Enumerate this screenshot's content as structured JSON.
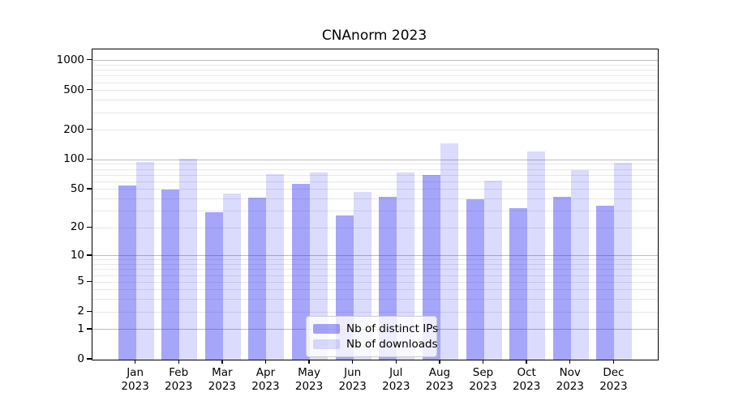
{
  "title": "CNAnorm 2023",
  "chart_data": {
    "type": "bar",
    "title": "CNAnorm 2023",
    "categories": [
      "Jan",
      "Feb",
      "Mar",
      "Apr",
      "May",
      "Jun",
      "Jul",
      "Aug",
      "Sep",
      "Oct",
      "Nov",
      "Dec"
    ],
    "category_year": "2023",
    "series": [
      {
        "name": "Nb of distinct IPs",
        "color": "rgba(30,30,242,0.40)",
        "values": [
          55,
          50,
          29,
          41,
          57,
          27,
          42,
          70,
          40,
          32,
          42,
          34
        ]
      },
      {
        "name": "Nb of downloads",
        "color": "rgba(30,30,242,0.16)",
        "values": [
          95,
          102,
          45,
          72,
          75,
          47,
          74,
          147,
          61,
          122,
          79,
          94
        ]
      }
    ],
    "y_ticks": [
      0,
      1,
      2,
      5,
      10,
      20,
      50,
      100,
      200,
      500,
      1000
    ],
    "major_grid_values": [
      1,
      10,
      100,
      1000
    ],
    "y_scale": "log10(value+1)",
    "ylim": [
      0,
      1280
    ],
    "grid": true,
    "legend_position": "lower center",
    "colors": {
      "major_grid": "#bcbcbc",
      "minor_grid": "#e8e8e8",
      "axis": "#000000"
    }
  }
}
